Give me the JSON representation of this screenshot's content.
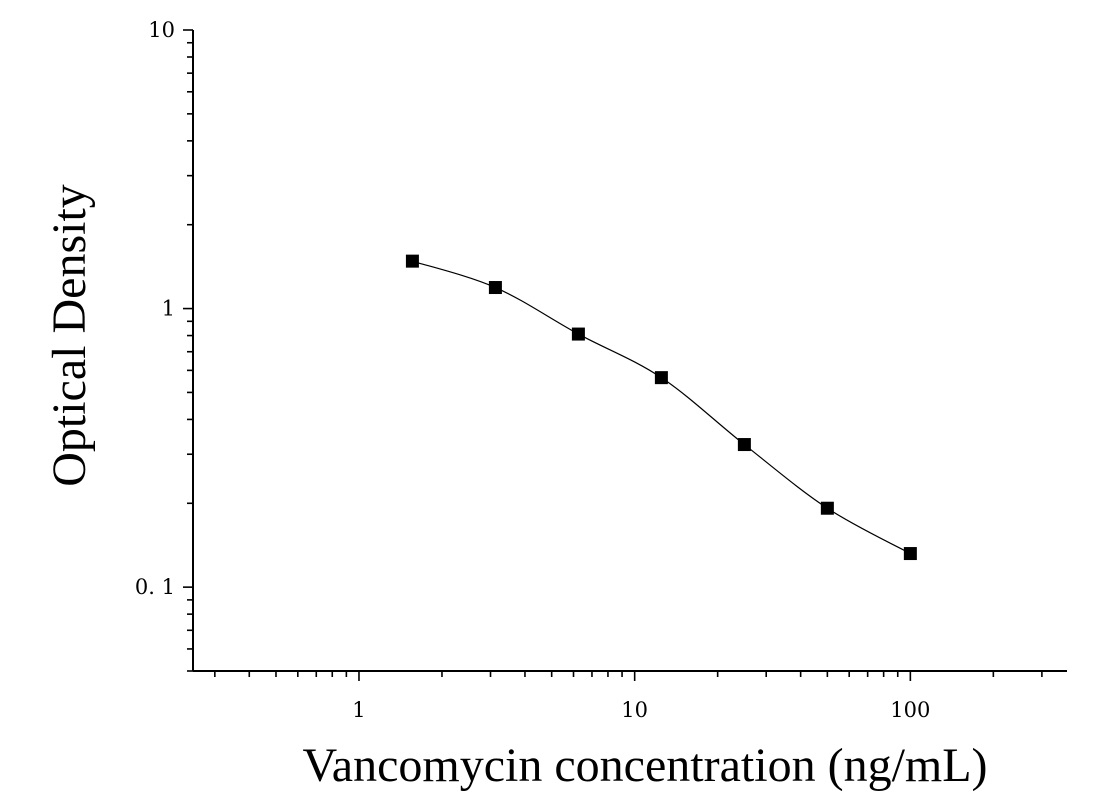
{
  "chart_data": {
    "type": "scatter",
    "xlabel": "Vancomycin concentration (ng/mL)",
    "ylabel": "Optical Density",
    "xscale": "log",
    "yscale": "log",
    "xlim": [
      0.25,
      370
    ],
    "ylim": [
      0.05,
      10
    ],
    "x_ticks": [
      1,
      10,
      100
    ],
    "x_tick_labels": [
      "1",
      "10",
      "100"
    ],
    "y_ticks": [
      0.1,
      1,
      10
    ],
    "y_tick_labels": [
      "0. 1",
      "1",
      "10"
    ],
    "grid": false,
    "series": [
      {
        "x": [
          1.5625,
          3.125,
          6.25,
          12.5,
          25,
          50,
          100
        ],
        "y": [
          1.48,
          1.19,
          0.81,
          0.565,
          0.325,
          0.192,
          0.132
        ],
        "marker": "square",
        "color": "#000000",
        "fit_curve": true
      }
    ]
  }
}
